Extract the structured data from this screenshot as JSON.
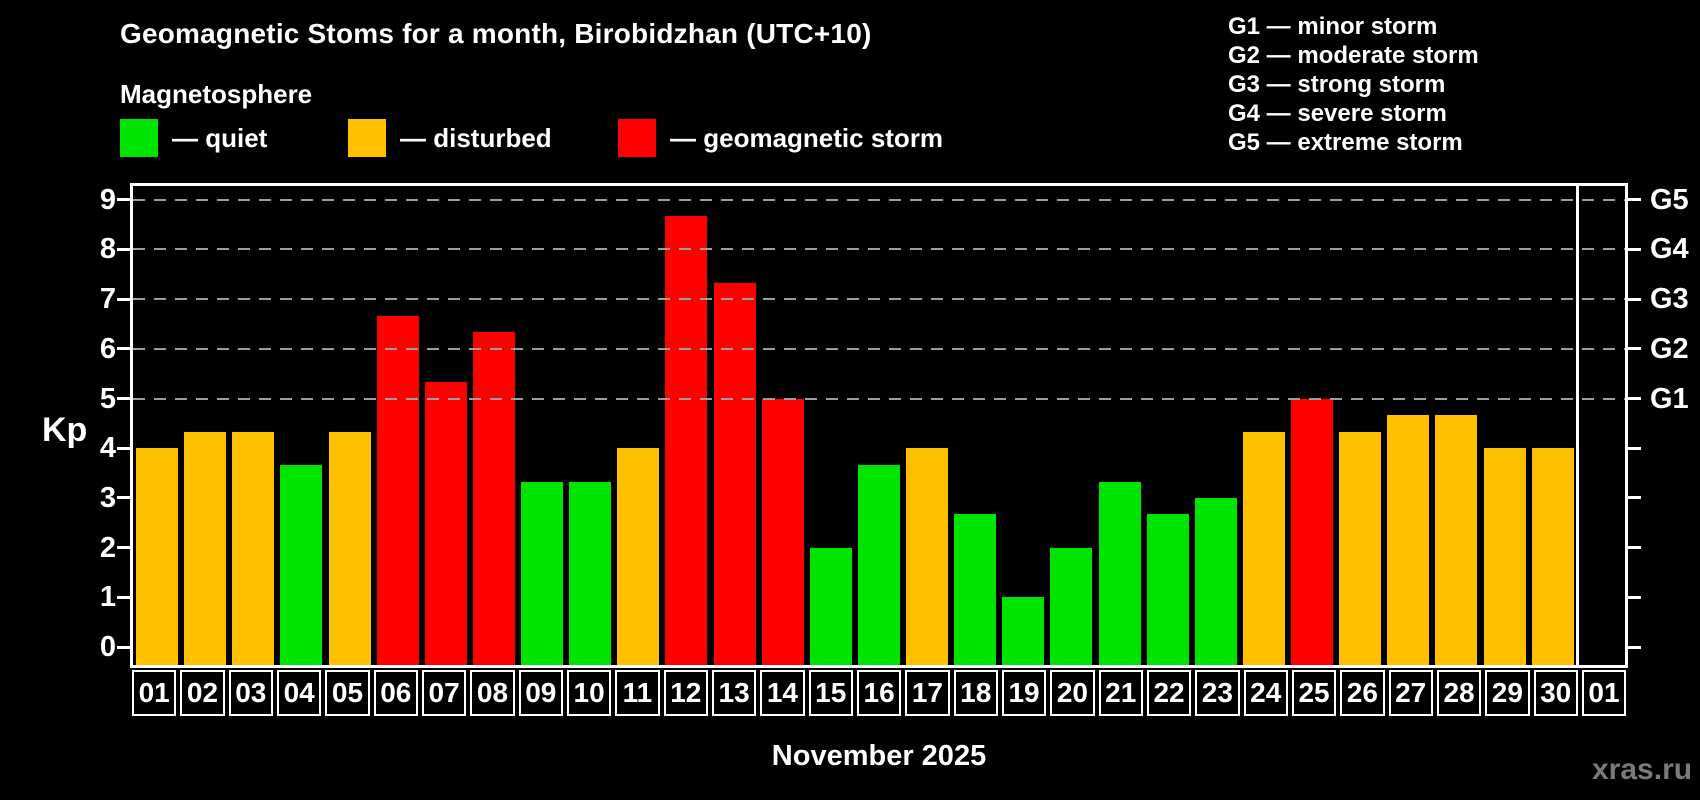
{
  "header": {
    "title": "Geomagnetic Stoms for a month, Birobidzhan (UTC+10)",
    "subtitle": "Magnetosphere",
    "legend": [
      {
        "name": "quiet",
        "label": "— quiet",
        "color": "#00e400"
      },
      {
        "name": "disturbed",
        "label": "— disturbed",
        "color": "#ffc000"
      },
      {
        "name": "storm",
        "label": "— geomagnetic storm",
        "color": "#ff0000"
      }
    ],
    "g_legend": [
      "G1 — minor storm",
      "G2 — moderate storm",
      "G3 — strong storm",
      "G4 — severe storm",
      "G5 — extreme storm"
    ]
  },
  "chart_data": {
    "type": "bar",
    "title": "Geomagnetic Stoms for a month, Birobidzhan (UTC+10)",
    "ylabel": "Kp",
    "xlabel": "November 2025",
    "ylim": [
      0,
      9
    ],
    "grid": "dashed horizontal at Kp 5-9",
    "legend_position": "top-left",
    "categories": [
      "01",
      "02",
      "03",
      "04",
      "05",
      "06",
      "07",
      "08",
      "09",
      "10",
      "11",
      "12",
      "13",
      "14",
      "15",
      "16",
      "17",
      "18",
      "19",
      "20",
      "21",
      "22",
      "23",
      "24",
      "25",
      "26",
      "27",
      "28",
      "29",
      "30",
      "01"
    ],
    "values": [
      4,
      4.33,
      4.33,
      3.67,
      4.33,
      6.67,
      5.33,
      6.33,
      3.33,
      3.33,
      4,
      8.67,
      7.33,
      5,
      2,
      3.67,
      4,
      2.67,
      1,
      2,
      3.33,
      2.67,
      3,
      4.33,
      5,
      4.33,
      4.67,
      4.67,
      4,
      4,
      null
    ],
    "statuses": [
      "disturbed",
      "disturbed",
      "disturbed",
      "quiet",
      "disturbed",
      "storm",
      "storm",
      "storm",
      "quiet",
      "quiet",
      "disturbed",
      "storm",
      "storm",
      "storm",
      "quiet",
      "quiet",
      "disturbed",
      "quiet",
      "quiet",
      "quiet",
      "quiet",
      "quiet",
      "quiet",
      "disturbed",
      "storm",
      "disturbed",
      "disturbed",
      "disturbed",
      "disturbed",
      "disturbed",
      null
    ],
    "status_colors": {
      "quiet": "#00e400",
      "disturbed": "#ffc000",
      "storm": "#ff0000"
    },
    "yticks": [
      0,
      1,
      2,
      3,
      4,
      5,
      6,
      7,
      8,
      9
    ],
    "gridlines": [
      5,
      6,
      7,
      8,
      9
    ],
    "right_axis": [
      {
        "kp": 5,
        "label": "G1"
      },
      {
        "kp": 6,
        "label": "G2"
      },
      {
        "kp": 7,
        "label": "G3"
      },
      {
        "kp": 8,
        "label": "G4"
      },
      {
        "kp": 9,
        "label": "G5"
      }
    ],
    "month_separator_index": 30
  },
  "footer": {
    "caption": "November 2025",
    "watermark": "xras.ru"
  }
}
